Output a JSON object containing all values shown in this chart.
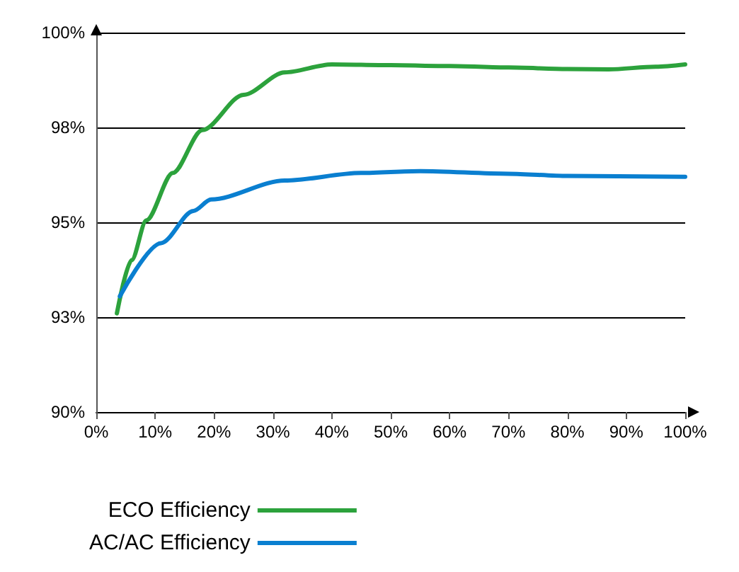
{
  "chart_data": {
    "type": "line",
    "xlim": [
      0,
      100
    ],
    "xticks": [
      {
        "value": 0,
        "label": "0%"
      },
      {
        "value": 10,
        "label": "10%"
      },
      {
        "value": 20,
        "label": "20%"
      },
      {
        "value": 30,
        "label": "30%"
      },
      {
        "value": 40,
        "label": "40%"
      },
      {
        "value": 50,
        "label": "50%"
      },
      {
        "value": 60,
        "label": "60%"
      },
      {
        "value": 70,
        "label": "70%"
      },
      {
        "value": 80,
        "label": "80%"
      },
      {
        "value": 90,
        "label": "90%"
      },
      {
        "value": 100,
        "label": "100%"
      }
    ],
    "ylim": [
      90,
      100
    ],
    "yticks": [
      {
        "value": 90,
        "label": "90%"
      },
      {
        "value": 92.5,
        "label": "93%"
      },
      {
        "value": 95,
        "label": "95%"
      },
      {
        "value": 97.5,
        "label": "98%"
      },
      {
        "value": 100,
        "label": "100%"
      }
    ],
    "grid": "y",
    "legend": "bottom left",
    "marker": "none",
    "line_style": "solid",
    "series": [
      {
        "name": "ECO Efficiency",
        "color": "#2ca23c",
        "x": [
          3.5,
          6,
          8.5,
          13,
          18,
          25,
          32,
          40,
          50,
          60,
          70,
          80,
          87,
          95,
          100
        ],
        "values": [
          92.6,
          94.0,
          95.05,
          96.3,
          97.43,
          98.36,
          98.95,
          99.16,
          99.14,
          99.12,
          99.08,
          99.04,
          99.03,
          99.1,
          99.16
        ]
      },
      {
        "name": "AC/AC Efficiency",
        "color": "#0a7fd0",
        "x": [
          4,
          11,
          16.5,
          19.5,
          32,
          45,
          55,
          70,
          80,
          100
        ],
        "values": [
          93.05,
          94.45,
          95.3,
          95.6,
          96.1,
          96.3,
          96.35,
          96.28,
          96.22,
          96.2
        ]
      }
    ]
  }
}
